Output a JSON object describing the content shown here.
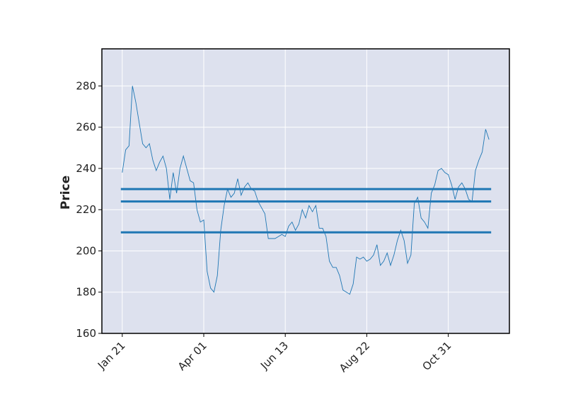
{
  "chart_data": {
    "type": "line",
    "ylabel": "Price",
    "categories": [
      "Jan 21",
      null,
      null,
      null,
      null,
      null,
      null,
      null,
      null,
      null,
      null,
      null,
      null,
      null,
      null,
      null,
      null,
      null,
      null,
      null,
      null,
      null,
      null,
      null,
      "Apr 01",
      null,
      null,
      null,
      null,
      null,
      null,
      null,
      null,
      null,
      null,
      null,
      null,
      null,
      null,
      null,
      null,
      null,
      null,
      null,
      null,
      null,
      null,
      null,
      "Jun 13",
      null,
      null,
      null,
      null,
      null,
      null,
      null,
      null,
      null,
      null,
      null,
      null,
      null,
      null,
      null,
      null,
      null,
      null,
      null,
      null,
      null,
      null,
      null,
      "Aug 22",
      null,
      null,
      null,
      null,
      null,
      null,
      null,
      null,
      null,
      null,
      null,
      null,
      null,
      null,
      null,
      null,
      null,
      null,
      null,
      null,
      null,
      null,
      null,
      "Oct 31",
      null,
      null,
      null,
      null,
      null,
      null,
      null,
      null,
      null,
      null,
      null,
      null
    ],
    "values": [
      238,
      249,
      251,
      280,
      272,
      262,
      252,
      250,
      252,
      244,
      239,
      243,
      246,
      240,
      225,
      238,
      228,
      240,
      246,
      240,
      234,
      233,
      220,
      214,
      215,
      190,
      182,
      180,
      188,
      210,
      222,
      230,
      226,
      228,
      235,
      227,
      231,
      233,
      230,
      229,
      224,
      221,
      218,
      206,
      206,
      206,
      207,
      208,
      207,
      212,
      214,
      210,
      213,
      220,
      216,
      222,
      219,
      222,
      211,
      211,
      207,
      195,
      192,
      192,
      188,
      181,
      180,
      179,
      184,
      197,
      196,
      197,
      195,
      196,
      198,
      203,
      193,
      195,
      199,
      193,
      198,
      205,
      210,
      205,
      194,
      198,
      223,
      226,
      216,
      214,
      211,
      228,
      232,
      239,
      240,
      238,
      237,
      232,
      225,
      231,
      233,
      230,
      225,
      224,
      239,
      244,
      248,
      259,
      254
    ],
    "color": "#1f77b4",
    "hlines": {
      "values": [
        230,
        224,
        209
      ],
      "color": "#1f77b4"
    },
    "ylim": [
      160,
      298
    ],
    "yticks": [
      160,
      180,
      200,
      220,
      240,
      260,
      280
    ],
    "grid": true
  }
}
